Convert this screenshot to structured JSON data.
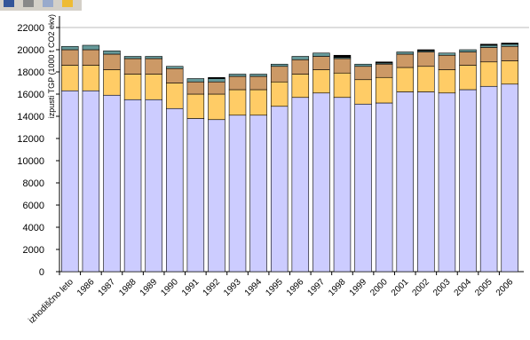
{
  "chart_data": {
    "type": "stacked-bar",
    "y_label": "izpusti TGP (1000 t CO2 ekv)",
    "categories": [
      "izhodiščno leto",
      "1986",
      "1987",
      "1988",
      "1989",
      "1990",
      "1991",
      "1992",
      "1993",
      "1994",
      "1995",
      "1996",
      "1997",
      "1998",
      "1999",
      "2000",
      "2001",
      "2002",
      "2003",
      "2004",
      "2005",
      "2006"
    ],
    "series": [
      {
        "color": "#ccccff",
        "values": [
          16300,
          16300,
          15900,
          15500,
          15500,
          14700,
          13800,
          13700,
          14100,
          14100,
          14900,
          15700,
          16100,
          15700,
          15100,
          15200,
          16200,
          16200,
          16100,
          16400,
          16700,
          16900
        ]
      },
      {
        "color": "#ffcc66",
        "values": [
          2300,
          2300,
          2300,
          2300,
          2300,
          2300,
          2200,
          2300,
          2300,
          2300,
          2200,
          2100,
          2100,
          2200,
          2200,
          2300,
          2200,
          2300,
          2100,
          2200,
          2200,
          2100
        ]
      },
      {
        "color": "#cc9966",
        "values": [
          1400,
          1400,
          1400,
          1400,
          1400,
          1300,
          1100,
          1100,
          1200,
          1200,
          1400,
          1300,
          1200,
          1300,
          1200,
          1200,
          1200,
          1300,
          1300,
          1200,
          1300,
          1300
        ]
      },
      {
        "color": "#669999",
        "values": [
          300,
          400,
          300,
          200,
          200,
          200,
          300,
          300,
          200,
          200,
          200,
          300,
          300,
          100,
          200,
          100,
          200,
          100,
          200,
          200,
          200,
          200
        ]
      },
      {
        "color": "#000000",
        "values": [
          0,
          0,
          0,
          0,
          0,
          0,
          0,
          100,
          0,
          0,
          0,
          0,
          0,
          200,
          0,
          100,
          0,
          100,
          0,
          0,
          100,
          100
        ]
      }
    ],
    "ylim": [
      0,
      22000
    ],
    "yticks": [
      0,
      2000,
      4000,
      6000,
      8000,
      10000,
      12000,
      14000,
      16000,
      18000,
      20000,
      22000
    ]
  }
}
